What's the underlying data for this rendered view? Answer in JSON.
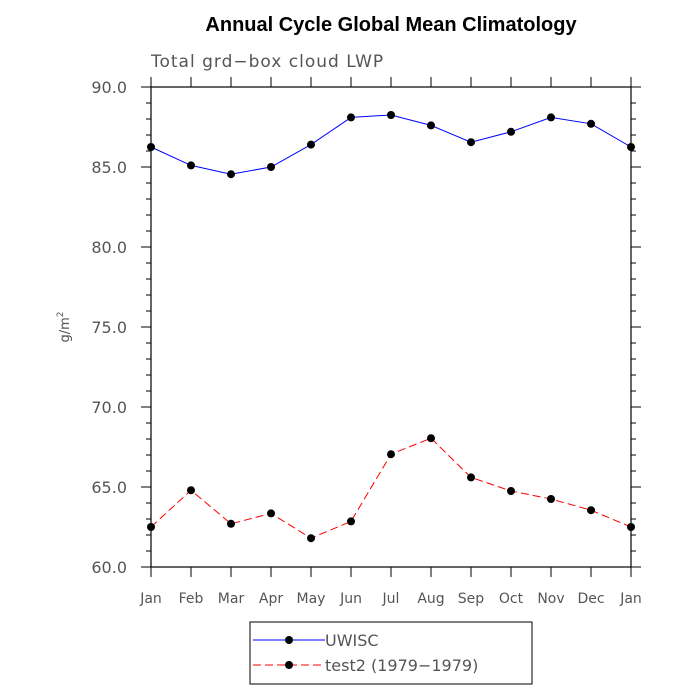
{
  "chart_data": {
    "type": "line",
    "title": "Annual Cycle Global Mean Climatology",
    "subtitle": "Total grd−box cloud LWP",
    "xlabel": "",
    "ylabel": "g/m",
    "ylabel_superscript": "2",
    "categories": [
      "Jan",
      "Feb",
      "Mar",
      "Apr",
      "May",
      "Jun",
      "Jul",
      "Aug",
      "Sep",
      "Oct",
      "Nov",
      "Dec",
      "Jan"
    ],
    "ylim": [
      60.0,
      90.0
    ],
    "yticks": [
      "60.0",
      "65.0",
      "70.0",
      "75.0",
      "80.0",
      "85.0",
      "90.0"
    ],
    "series": [
      {
        "name": "UWISC",
        "color": "#0000ff",
        "dash": "solid",
        "values": [
          86.25,
          85.1,
          84.55,
          85.0,
          86.4,
          88.1,
          88.25,
          87.6,
          86.55,
          87.2,
          88.1,
          87.7,
          86.25
        ]
      },
      {
        "name": "test2 (1979−1979)",
        "color": "#ff0000",
        "dash": "dashed",
        "values": [
          62.5,
          64.8,
          62.7,
          63.35,
          61.8,
          62.85,
          67.05,
          68.05,
          65.6,
          64.75,
          64.25,
          63.55,
          62.5
        ]
      }
    ],
    "legend_position": "bottom-center",
    "grid": false
  }
}
